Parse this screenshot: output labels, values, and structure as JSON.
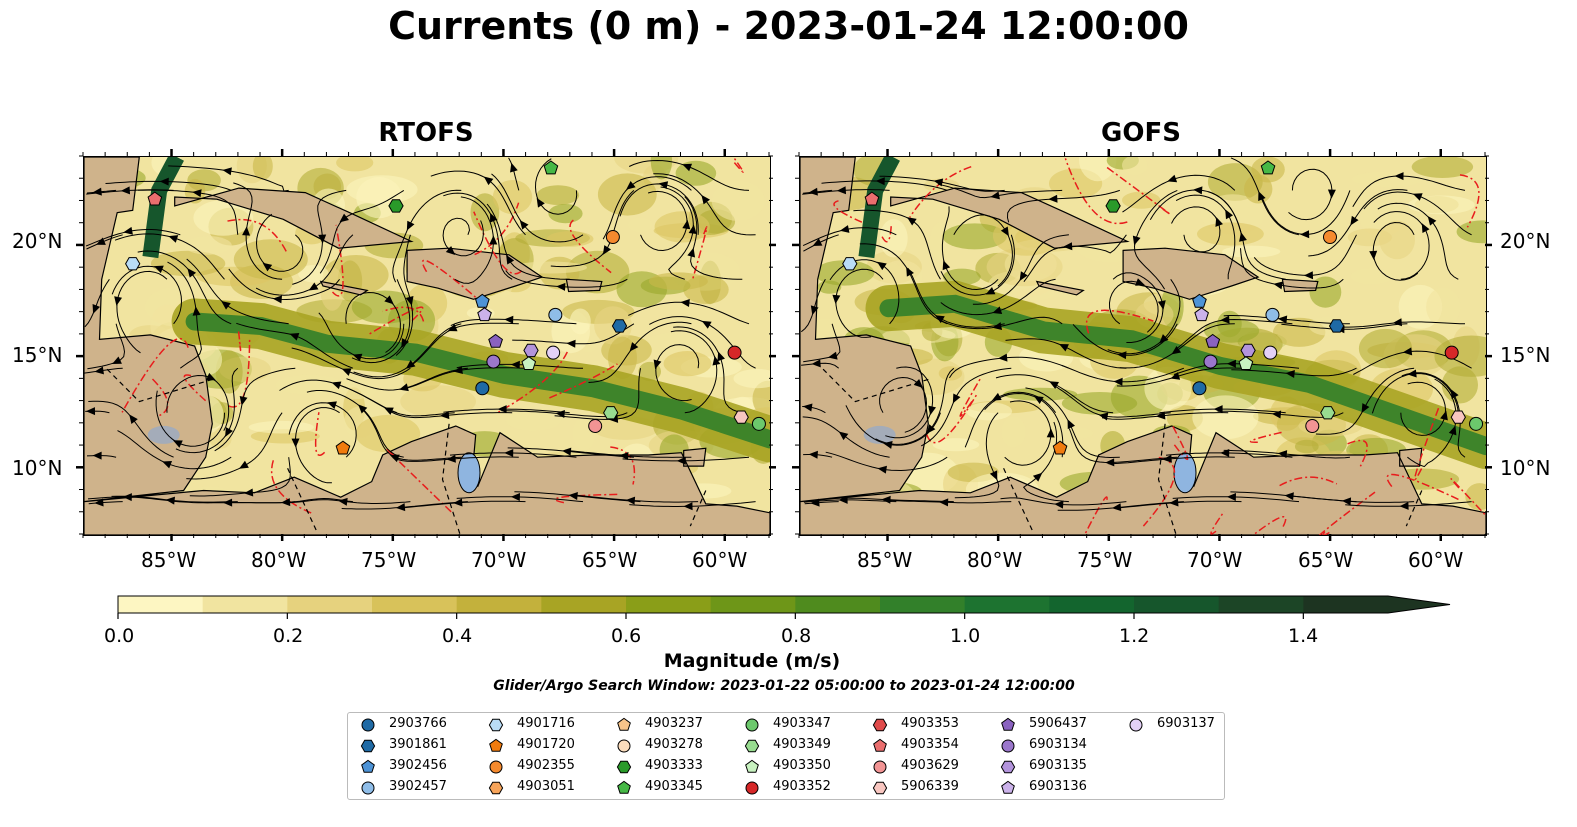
{
  "title": "Currents (0 m) - 2023-01-24 12:00:00",
  "panels": [
    {
      "title": "RTOFS",
      "x_ticks": [
        "85°W",
        "80°W",
        "75°W",
        "70°W",
        "65°W",
        "60°W"
      ],
      "y_ticks": [
        "20°N",
        "15°N",
        "10°N"
      ]
    },
    {
      "title": "GOFS",
      "x_ticks": [
        "85°W",
        "80°W",
        "75°W",
        "70°W",
        "65°W",
        "60°W"
      ],
      "y_ticks": [
        "20°N",
        "15°N",
        "10°N"
      ]
    }
  ],
  "colorbar": {
    "label": "Magnitude (m/s)",
    "ticks": [
      "0.0",
      "0.2",
      "0.4",
      "0.6",
      "0.8",
      "1.0",
      "1.2",
      "1.4"
    ],
    "range": [
      0,
      1.5
    ],
    "colors": [
      "#fdf6c2",
      "#f1e4a0",
      "#e6d27e",
      "#d8c25a",
      "#c3b13c",
      "#a8a424",
      "#8a9e18",
      "#6e9618",
      "#4f8b1e",
      "#32802a",
      "#1d7330",
      "#13652e",
      "#16562c",
      "#1c4526",
      "#1d3421"
    ]
  },
  "search_window": "Glider/Argo Search Window: 2023-01-22 05:00:00 to 2023-01-24 12:00:00",
  "legend": [
    {
      "label": "2903766",
      "shape": "circle",
      "color": "#1f6aa5"
    },
    {
      "label": "3901861",
      "shape": "hexagon",
      "color": "#1f6aa5"
    },
    {
      "label": "3902456",
      "shape": "pentagon",
      "color": "#4d93d6"
    },
    {
      "label": "3902457",
      "shape": "circle",
      "color": "#8fbde8"
    },
    {
      "label": "4901716",
      "shape": "hexagon",
      "color": "#b9dcf6"
    },
    {
      "label": "4901720",
      "shape": "pentagon",
      "color": "#f07b0e"
    },
    {
      "label": "4902355",
      "shape": "circle",
      "color": "#f58a2e"
    },
    {
      "label": "4903051",
      "shape": "hexagon",
      "color": "#f7a45a"
    },
    {
      "label": "4903237",
      "shape": "pentagon",
      "color": "#f8c48a"
    },
    {
      "label": "4903278",
      "shape": "circle",
      "color": "#fbddbd"
    },
    {
      "label": "4903333",
      "shape": "hexagon",
      "color": "#2a9a2a"
    },
    {
      "label": "4903345",
      "shape": "pentagon",
      "color": "#46b846"
    },
    {
      "label": "4903347",
      "shape": "circle",
      "color": "#6cc86c"
    },
    {
      "label": "4903349",
      "shape": "hexagon",
      "color": "#98dc90"
    },
    {
      "label": "4903350",
      "shape": "pentagon",
      "color": "#c8f2c0"
    },
    {
      "label": "4903352",
      "shape": "circle",
      "color": "#d62728"
    },
    {
      "label": "4903353",
      "shape": "hexagon",
      "color": "#e04a4a"
    },
    {
      "label": "4903354",
      "shape": "pentagon",
      "color": "#ea6e6e"
    },
    {
      "label": "4903629",
      "shape": "circle",
      "color": "#f29494"
    },
    {
      "label": "5906339",
      "shape": "hexagon",
      "color": "#f8c6c0"
    },
    {
      "label": "5906437",
      "shape": "pentagon",
      "color": "#8a62c0"
    },
    {
      "label": "6903134",
      "shape": "circle",
      "color": "#9b77cc"
    },
    {
      "label": "6903135",
      "shape": "hexagon",
      "color": "#b394dc"
    },
    {
      "label": "6903136",
      "shape": "pentagon",
      "color": "#cbb2ea"
    },
    {
      "label": "6903137",
      "shape": "circle",
      "color": "#e3d0f6"
    }
  ],
  "map_extent": {
    "lon": [
      -89,
      -58
    ],
    "lat": [
      7,
      24
    ]
  },
  "floats": [
    {
      "id": "2903766",
      "lon": -71.0,
      "lat": 13.6
    },
    {
      "id": "3901861",
      "lon": -64.8,
      "lat": 16.4
    },
    {
      "id": "3902456",
      "lon": -71.0,
      "lat": 17.5
    },
    {
      "id": "3902457",
      "lon": -67.7,
      "lat": 16.9
    },
    {
      "id": "4901716",
      "lon": -86.8,
      "lat": 19.2
    },
    {
      "id": "4901720",
      "lon": -77.3,
      "lat": 10.9
    },
    {
      "id": "4902355",
      "lon": -65.1,
      "lat": 20.4
    },
    {
      "id": "4903333",
      "lon": -74.9,
      "lat": 21.8
    },
    {
      "id": "4903345",
      "lon": -67.9,
      "lat": 23.5
    },
    {
      "id": "4903347",
      "lon": -58.5,
      "lat": 12.0
    },
    {
      "id": "4903349",
      "lon": -65.2,
      "lat": 12.5
    },
    {
      "id": "4903350",
      "lon": -68.9,
      "lat": 14.7
    },
    {
      "id": "4903352",
      "lon": -59.6,
      "lat": 15.2
    },
    {
      "id": "4903354",
      "lon": -85.8,
      "lat": 22.1
    },
    {
      "id": "4903629",
      "lon": -65.9,
      "lat": 11.9
    },
    {
      "id": "5906339",
      "lon": -59.3,
      "lat": 12.3
    },
    {
      "id": "5906437",
      "lon": -70.4,
      "lat": 15.7
    },
    {
      "id": "6903134",
      "lon": -70.5,
      "lat": 14.8
    },
    {
      "id": "6903135",
      "lon": -68.8,
      "lat": 15.3
    },
    {
      "id": "6903136",
      "lon": -70.9,
      "lat": 16.9
    },
    {
      "id": "6903137",
      "lon": -67.8,
      "lat": 15.2
    }
  ]
}
